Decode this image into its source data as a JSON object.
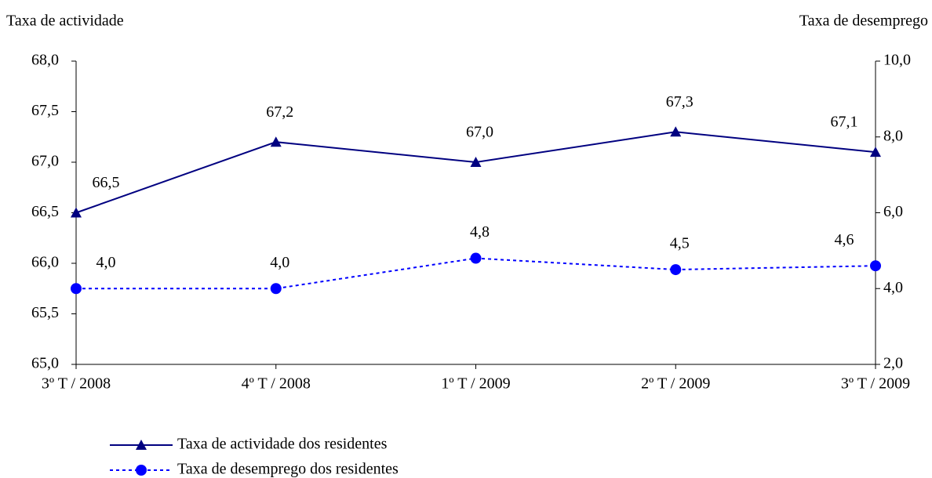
{
  "chart_data": {
    "type": "line",
    "y_label": "Taxa de actividade",
    "y2_label": "Taxa de desemprego",
    "categories": [
      "3º T / 2008",
      "4º T / 2008",
      "1º T / 2009",
      "2º T / 2009",
      "3º T / 2009"
    ],
    "series": [
      {
        "name": "Taxa de actividade dos residentes",
        "color": "#000080",
        "marker": "triangle",
        "line_style": "solid",
        "values": [
          66.5,
          67.2,
          67.0,
          67.3,
          67.1
        ],
        "value_labels": [
          "66,5",
          "67,2",
          "67,0",
          "67,3",
          "67,1"
        ]
      },
      {
        "name": "Taxa de desemprego dos residentes",
        "color": "#0000ff",
        "marker": "circle",
        "line_style": "dashed",
        "axis": "y2",
        "values": [
          4.0,
          4.0,
          4.8,
          4.5,
          4.6
        ],
        "value_labels": [
          "4,0",
          "4,0",
          "4,8",
          "4,5",
          "4,6"
        ]
      }
    ],
    "ylim": [
      65,
      68
    ],
    "yticks": [
      {
        "value": 65,
        "label": "65,0"
      },
      {
        "value": 65.5,
        "label": "65,5"
      },
      {
        "value": 66,
        "label": "66,0"
      },
      {
        "value": 66.5,
        "label": "66,5"
      },
      {
        "value": 67,
        "label": "67,0"
      },
      {
        "value": 67.5,
        "label": "67,5"
      },
      {
        "value": 68,
        "label": "68,0"
      }
    ],
    "y2lim": [
      2,
      10
    ],
    "y2ticks": [
      {
        "value": 2,
        "label": "2,0"
      },
      {
        "value": 4,
        "label": "4,0"
      },
      {
        "value": 6,
        "label": "6,0"
      },
      {
        "value": 8,
        "label": "8,0"
      },
      {
        "value": 10,
        "label": "10,0"
      }
    ],
    "legend": "bottom"
  }
}
